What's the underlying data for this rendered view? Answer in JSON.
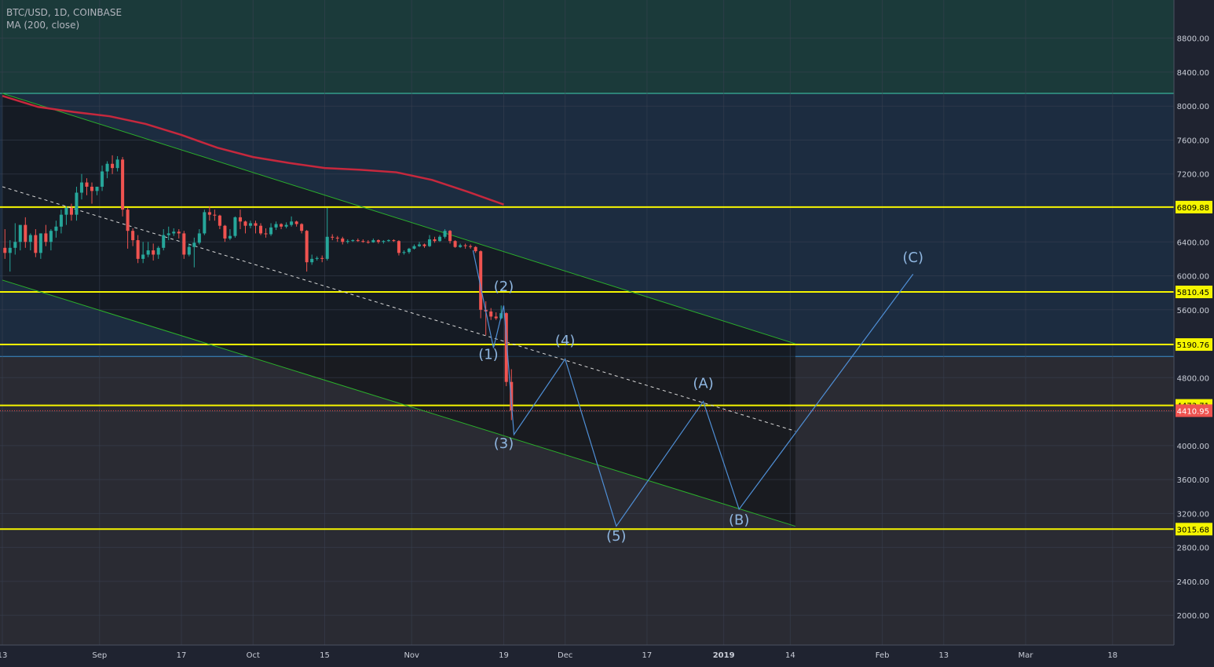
{
  "header": {
    "symbol_line": "BTC/USD, 1D, COINBASE",
    "indicator_line": "MA (200, close)"
  },
  "colors": {
    "bg_dark": "#1f2330",
    "zone_top": "#1b3a3a",
    "zone_mid": "#1c2c40",
    "zone_bottom": "#2a2b33",
    "channel_fill": "#141519",
    "grid": "#3b4152",
    "up_candle": "#26a69a",
    "down_candle": "#ef5350",
    "ma_line": "#c6283d",
    "channel_line": "#2bb02b",
    "level_line": "#f5f500",
    "wave_line": "#4f8fd6",
    "wave_label": "#8fb6e0",
    "price_label_bg": "#f5f500",
    "current_price_bg": "#ef5350"
  },
  "chart_data": {
    "type": "candlestick",
    "title": "BTC/USD, 1D, COINBASE",
    "indicator": "MA (200, close)",
    "y_axis": {
      "range": [
        1650,
        9250
      ],
      "ticks": [
        2000,
        2400,
        2800,
        3200,
        3600,
        4000,
        4400,
        4800,
        5200,
        5600,
        6000,
        6400,
        6800,
        7200,
        7600,
        8000,
        8400,
        8800
      ],
      "tick_labels": [
        "2000.00",
        "2400.00",
        "2800.00",
        "3200.00",
        "3600.00",
        "4000.00",
        "4400.00",
        "4800.00",
        "5200.00",
        "5600.00",
        "6000.00",
        "6400.00",
        "6800.00",
        "7200.00",
        "7600.00",
        "8000.00",
        "8400.00",
        "8800.00"
      ]
    },
    "x_axis": {
      "start": "2018-08-13",
      "end": "2019-03-30",
      "ticks": [
        {
          "date": "2018-08-13",
          "label": "13"
        },
        {
          "date": "2018-09-01",
          "label": "Sep"
        },
        {
          "date": "2018-09-17",
          "label": "17"
        },
        {
          "date": "2018-10-01",
          "label": "Oct"
        },
        {
          "date": "2018-10-15",
          "label": "15"
        },
        {
          "date": "2018-11-01",
          "label": "Nov"
        },
        {
          "date": "2018-11-19",
          "label": "19"
        },
        {
          "date": "2018-12-01",
          "label": "Dec"
        },
        {
          "date": "2018-12-17",
          "label": "17"
        },
        {
          "date": "2019-01-01",
          "label": "2019"
        },
        {
          "date": "2019-01-14",
          "label": "14"
        },
        {
          "date": "2019-02-01",
          "label": "Feb"
        },
        {
          "date": "2019-02-13",
          "label": "13"
        },
        {
          "date": "2019-03-01",
          "label": "Mar"
        },
        {
          "date": "2019-03-18",
          "label": "18"
        }
      ]
    },
    "price_levels": [
      {
        "price": 6809.88,
        "label": "6809.88"
      },
      {
        "price": 5810.45,
        "label": "5810.45"
      },
      {
        "price": 5190.76,
        "label": "5190.76"
      },
      {
        "price": 4473.71,
        "label": "4473.71"
      },
      {
        "price": 3015.68,
        "label": "3015.68"
      }
    ],
    "current_price": {
      "price": 4410.95,
      "label": "4410.95"
    },
    "zone_boundaries": [
      8150,
      5050
    ],
    "channel": {
      "upper": [
        {
          "date": "2018-08-13",
          "price": 8150
        },
        {
          "date": "2019-01-15",
          "price": 5200
        }
      ],
      "lower": [
        {
          "date": "2018-08-13",
          "price": 5950
        },
        {
          "date": "2019-01-15",
          "price": 3050
        }
      ],
      "mid": [
        {
          "date": "2018-08-13",
          "price": 7050
        },
        {
          "date": "2019-01-15",
          "price": 4170
        }
      ],
      "shade": [
        {
          "date": "2018-08-13",
          "price": 8150
        },
        {
          "date": "2019-01-15",
          "price": 5200
        },
        {
          "date": "2019-01-15",
          "price": 3050
        },
        {
          "date": "2018-08-13",
          "price": 5950
        }
      ]
    },
    "ma_200": [
      {
        "date": "2018-08-13",
        "value": 8120
      },
      {
        "date": "2018-08-20",
        "value": 7990
      },
      {
        "date": "2018-08-27",
        "value": 7930
      },
      {
        "date": "2018-09-03",
        "value": 7880
      },
      {
        "date": "2018-09-10",
        "value": 7790
      },
      {
        "date": "2018-09-17",
        "value": 7660
      },
      {
        "date": "2018-09-24",
        "value": 7510
      },
      {
        "date": "2018-10-01",
        "value": 7400
      },
      {
        "date": "2018-10-08",
        "value": 7330
      },
      {
        "date": "2018-10-15",
        "value": 7270
      },
      {
        "date": "2018-10-22",
        "value": 7250
      },
      {
        "date": "2018-10-29",
        "value": 7220
      },
      {
        "date": "2018-11-05",
        "value": 7130
      },
      {
        "date": "2018-11-12",
        "value": 6990
      },
      {
        "date": "2018-11-19",
        "value": 6840
      }
    ],
    "candles": [
      {
        "date": "2018-08-13",
        "open": 6330,
        "high": 6550,
        "low": 6200,
        "close": 6270
      },
      {
        "date": "2018-08-14",
        "open": 6270,
        "high": 6420,
        "low": 6050,
        "close": 6330
      },
      {
        "date": "2018-08-15",
        "open": 6330,
        "high": 6620,
        "low": 6250,
        "close": 6400
      },
      {
        "date": "2018-08-16",
        "open": 6400,
        "high": 6560,
        "low": 6300,
        "close": 6600
      },
      {
        "date": "2018-08-17",
        "open": 6600,
        "high": 6690,
        "low": 6330,
        "close": 6400
      },
      {
        "date": "2018-08-18",
        "open": 6400,
        "high": 6500,
        "low": 6300,
        "close": 6480
      },
      {
        "date": "2018-08-19",
        "open": 6480,
        "high": 6550,
        "low": 6220,
        "close": 6270
      },
      {
        "date": "2018-08-20",
        "open": 6270,
        "high": 6500,
        "low": 6200,
        "close": 6500
      },
      {
        "date": "2018-08-21",
        "open": 6500,
        "high": 6600,
        "low": 6350,
        "close": 6400
      },
      {
        "date": "2018-08-22",
        "open": 6400,
        "high": 6550,
        "low": 6300,
        "close": 6530
      },
      {
        "date": "2018-08-23",
        "open": 6530,
        "high": 6650,
        "low": 6450,
        "close": 6580
      },
      {
        "date": "2018-08-24",
        "open": 6580,
        "high": 6780,
        "low": 6500,
        "close": 6720
      },
      {
        "date": "2018-08-25",
        "open": 6720,
        "high": 6820,
        "low": 6600,
        "close": 6800
      },
      {
        "date": "2018-08-26",
        "open": 6800,
        "high": 6850,
        "low": 6650,
        "close": 6720
      },
      {
        "date": "2018-08-27",
        "open": 6720,
        "high": 7050,
        "low": 6650,
        "close": 6980
      },
      {
        "date": "2018-08-28",
        "open": 6980,
        "high": 7200,
        "low": 6900,
        "close": 7100
      },
      {
        "date": "2018-08-29",
        "open": 7100,
        "high": 7150,
        "low": 6950,
        "close": 7050
      },
      {
        "date": "2018-08-30",
        "open": 7050,
        "high": 7100,
        "low": 6850,
        "close": 7000
      },
      {
        "date": "2018-08-31",
        "open": 7000,
        "high": 7050,
        "low": 6950,
        "close": 7050
      },
      {
        "date": "2018-09-01",
        "open": 7050,
        "high": 7300,
        "low": 7000,
        "close": 7230
      },
      {
        "date": "2018-09-02",
        "open": 7230,
        "high": 7350,
        "low": 7150,
        "close": 7320
      },
      {
        "date": "2018-09-03",
        "open": 7320,
        "high": 7420,
        "low": 7200,
        "close": 7270
      },
      {
        "date": "2018-09-04",
        "open": 7270,
        "high": 7410,
        "low": 7230,
        "close": 7370
      },
      {
        "date": "2018-09-05",
        "open": 7370,
        "high": 7400,
        "low": 6700,
        "close": 6780
      },
      {
        "date": "2018-09-06",
        "open": 6780,
        "high": 6800,
        "low": 6320,
        "close": 6530
      },
      {
        "date": "2018-09-07",
        "open": 6530,
        "high": 6560,
        "low": 6350,
        "close": 6420
      },
      {
        "date": "2018-09-08",
        "open": 6420,
        "high": 6480,
        "low": 6150,
        "close": 6200
      },
      {
        "date": "2018-09-09",
        "open": 6200,
        "high": 6400,
        "low": 6150,
        "close": 6250
      },
      {
        "date": "2018-09-10",
        "open": 6250,
        "high": 6400,
        "low": 6220,
        "close": 6300
      },
      {
        "date": "2018-09-11",
        "open": 6300,
        "high": 6380,
        "low": 6180,
        "close": 6250
      },
      {
        "date": "2018-09-12",
        "open": 6250,
        "high": 6350,
        "low": 6200,
        "close": 6330
      },
      {
        "date": "2018-09-13",
        "open": 6330,
        "high": 6550,
        "low": 6300,
        "close": 6480
      },
      {
        "date": "2018-09-14",
        "open": 6480,
        "high": 6580,
        "low": 6420,
        "close": 6500
      },
      {
        "date": "2018-09-15",
        "open": 6500,
        "high": 6560,
        "low": 6470,
        "close": 6520
      },
      {
        "date": "2018-09-16",
        "open": 6520,
        "high": 6550,
        "low": 6440,
        "close": 6500
      },
      {
        "date": "2018-09-17",
        "open": 6500,
        "high": 6530,
        "low": 6200,
        "close": 6250
      },
      {
        "date": "2018-09-18",
        "open": 6250,
        "high": 6380,
        "low": 6230,
        "close": 6340
      },
      {
        "date": "2018-09-19",
        "open": 6340,
        "high": 6450,
        "low": 6100,
        "close": 6390
      },
      {
        "date": "2018-09-20",
        "open": 6390,
        "high": 6550,
        "low": 6370,
        "close": 6500
      },
      {
        "date": "2018-09-21",
        "open": 6500,
        "high": 6780,
        "low": 6480,
        "close": 6750
      },
      {
        "date": "2018-09-22",
        "open": 6750,
        "high": 6820,
        "low": 6650,
        "close": 6720
      },
      {
        "date": "2018-09-23",
        "open": 6720,
        "high": 6780,
        "low": 6650,
        "close": 6710
      },
      {
        "date": "2018-09-24",
        "open": 6710,
        "high": 6720,
        "low": 6550,
        "close": 6590
      },
      {
        "date": "2018-09-25",
        "open": 6590,
        "high": 6600,
        "low": 6400,
        "close": 6440
      },
      {
        "date": "2018-09-26",
        "open": 6440,
        "high": 6550,
        "low": 6420,
        "close": 6470
      },
      {
        "date": "2018-09-27",
        "open": 6470,
        "high": 6700,
        "low": 6450,
        "close": 6690
      },
      {
        "date": "2018-09-28",
        "open": 6690,
        "high": 6780,
        "low": 6550,
        "close": 6640
      },
      {
        "date": "2018-09-29",
        "open": 6640,
        "high": 6650,
        "low": 6500,
        "close": 6590
      },
      {
        "date": "2018-09-30",
        "open": 6590,
        "high": 6650,
        "low": 6560,
        "close": 6620
      },
      {
        "date": "2018-10-01",
        "open": 6620,
        "high": 6650,
        "low": 6500,
        "close": 6590
      },
      {
        "date": "2018-10-02",
        "open": 6590,
        "high": 6620,
        "low": 6480,
        "close": 6500
      },
      {
        "date": "2018-10-03",
        "open": 6500,
        "high": 6560,
        "low": 6450,
        "close": 6490
      },
      {
        "date": "2018-10-04",
        "open": 6490,
        "high": 6620,
        "low": 6470,
        "close": 6570
      },
      {
        "date": "2018-10-05",
        "open": 6570,
        "high": 6640,
        "low": 6540,
        "close": 6610
      },
      {
        "date": "2018-10-06",
        "open": 6610,
        "high": 6620,
        "low": 6550,
        "close": 6580
      },
      {
        "date": "2018-10-07",
        "open": 6580,
        "high": 6630,
        "low": 6560,
        "close": 6600
      },
      {
        "date": "2018-10-08",
        "open": 6600,
        "high": 6700,
        "low": 6580,
        "close": 6640
      },
      {
        "date": "2018-10-09",
        "open": 6640,
        "high": 6650,
        "low": 6580,
        "close": 6610
      },
      {
        "date": "2018-10-10",
        "open": 6610,
        "high": 6620,
        "low": 6500,
        "close": 6530
      },
      {
        "date": "2018-10-11",
        "open": 6530,
        "high": 6540,
        "low": 6050,
        "close": 6160
      },
      {
        "date": "2018-10-12",
        "open": 6160,
        "high": 6250,
        "low": 6130,
        "close": 6200
      },
      {
        "date": "2018-10-13",
        "open": 6200,
        "high": 6230,
        "low": 6180,
        "close": 6210
      },
      {
        "date": "2018-10-14",
        "open": 6210,
        "high": 6240,
        "low": 6160,
        "close": 6200
      },
      {
        "date": "2018-10-15",
        "open": 6200,
        "high": 6800,
        "low": 6180,
        "close": 6460
      },
      {
        "date": "2018-10-16",
        "open": 6460,
        "high": 6490,
        "low": 6420,
        "close": 6450
      },
      {
        "date": "2018-10-17",
        "open": 6450,
        "high": 6470,
        "low": 6400,
        "close": 6440
      },
      {
        "date": "2018-10-18",
        "open": 6440,
        "high": 6460,
        "low": 6370,
        "close": 6400
      },
      {
        "date": "2018-10-19",
        "open": 6400,
        "high": 6430,
        "low": 6380,
        "close": 6410
      },
      {
        "date": "2018-10-20",
        "open": 6410,
        "high": 6430,
        "low": 6400,
        "close": 6420
      },
      {
        "date": "2018-10-21",
        "open": 6420,
        "high": 6440,
        "low": 6400,
        "close": 6410
      },
      {
        "date": "2018-10-22",
        "open": 6410,
        "high": 6430,
        "low": 6390,
        "close": 6400
      },
      {
        "date": "2018-10-23",
        "open": 6400,
        "high": 6420,
        "low": 6380,
        "close": 6395
      },
      {
        "date": "2018-10-24",
        "open": 6395,
        "high": 6440,
        "low": 6390,
        "close": 6420
      },
      {
        "date": "2018-10-25",
        "open": 6420,
        "high": 6430,
        "low": 6380,
        "close": 6400
      },
      {
        "date": "2018-10-26",
        "open": 6400,
        "high": 6420,
        "low": 6380,
        "close": 6410
      },
      {
        "date": "2018-10-27",
        "open": 6410,
        "high": 6430,
        "low": 6400,
        "close": 6420
      },
      {
        "date": "2018-10-28",
        "open": 6420,
        "high": 6430,
        "low": 6400,
        "close": 6410
      },
      {
        "date": "2018-10-29",
        "open": 6410,
        "high": 6420,
        "low": 6240,
        "close": 6270
      },
      {
        "date": "2018-10-30",
        "open": 6270,
        "high": 6300,
        "low": 6250,
        "close": 6280
      },
      {
        "date": "2018-10-31",
        "open": 6280,
        "high": 6330,
        "low": 6260,
        "close": 6320
      },
      {
        "date": "2018-11-01",
        "open": 6320,
        "high": 6370,
        "low": 6310,
        "close": 6350
      },
      {
        "date": "2018-11-02",
        "open": 6350,
        "high": 6400,
        "low": 6340,
        "close": 6370
      },
      {
        "date": "2018-11-03",
        "open": 6370,
        "high": 6380,
        "low": 6330,
        "close": 6350
      },
      {
        "date": "2018-11-04",
        "open": 6350,
        "high": 6480,
        "low": 6340,
        "close": 6430
      },
      {
        "date": "2018-11-05",
        "open": 6430,
        "high": 6460,
        "low": 6390,
        "close": 6410
      },
      {
        "date": "2018-11-06",
        "open": 6410,
        "high": 6480,
        "low": 6400,
        "close": 6460
      },
      {
        "date": "2018-11-07",
        "open": 6460,
        "high": 6550,
        "low": 6440,
        "close": 6530
      },
      {
        "date": "2018-11-08",
        "open": 6530,
        "high": 6540,
        "low": 6380,
        "close": 6410
      },
      {
        "date": "2018-11-09",
        "open": 6410,
        "high": 6420,
        "low": 6330,
        "close": 6340
      },
      {
        "date": "2018-11-10",
        "open": 6340,
        "high": 6380,
        "low": 6330,
        "close": 6360
      },
      {
        "date": "2018-11-11",
        "open": 6360,
        "high": 6380,
        "low": 6320,
        "close": 6350
      },
      {
        "date": "2018-11-12",
        "open": 6350,
        "high": 6370,
        "low": 6320,
        "close": 6340
      },
      {
        "date": "2018-11-13",
        "open": 6340,
        "high": 6350,
        "low": 6270,
        "close": 6290
      },
      {
        "date": "2018-11-14",
        "open": 6290,
        "high": 6300,
        "low": 5500,
        "close": 5600
      },
      {
        "date": "2018-11-15",
        "open": 5600,
        "high": 5700,
        "low": 5300,
        "close": 5580
      },
      {
        "date": "2018-11-16",
        "open": 5580,
        "high": 5620,
        "low": 5480,
        "close": 5520
      },
      {
        "date": "2018-11-17",
        "open": 5520,
        "high": 5570,
        "low": 5480,
        "close": 5500
      },
      {
        "date": "2018-11-18",
        "open": 5500,
        "high": 5650,
        "low": 5490,
        "close": 5560
      },
      {
        "date": "2018-11-19",
        "open": 5560,
        "high": 5570,
        "low": 4700,
        "close": 4750
      },
      {
        "date": "2018-11-20",
        "open": 4750,
        "high": 4900,
        "low": 4300,
        "close": 4410.95
      }
    ],
    "wave_path": [
      {
        "date": "2018-11-13",
        "price": 6300
      },
      {
        "date": "2018-11-17",
        "price": 5150
      },
      {
        "date": "2018-11-19",
        "price": 5650
      },
      {
        "date": "2018-11-21",
        "price": 4130
      },
      {
        "date": "2018-12-01",
        "price": 5020
      },
      {
        "date": "2018-12-11",
        "price": 3050
      },
      {
        "date": "2018-12-28",
        "price": 4520
      },
      {
        "date": "2019-01-04",
        "price": 3250
      },
      {
        "date": "2019-02-07",
        "price": 6020
      }
    ],
    "wave_labels": [
      {
        "text": "(1)",
        "date": "2018-11-16",
        "price": 5020
      },
      {
        "text": "(2)",
        "date": "2018-11-19",
        "price": 5820
      },
      {
        "text": "(3)",
        "date": "2018-11-19",
        "price": 3970
      },
      {
        "text": "(4)",
        "date": "2018-12-01",
        "price": 5180
      },
      {
        "text": "(5)",
        "date": "2018-12-11",
        "price": 2880
      },
      {
        "text": "(A)",
        "date": "2018-12-28",
        "price": 4680
      },
      {
        "text": "(B)",
        "date": "2019-01-04",
        "price": 3070
      },
      {
        "text": "(C)",
        "date": "2019-02-07",
        "price": 6160
      }
    ]
  }
}
